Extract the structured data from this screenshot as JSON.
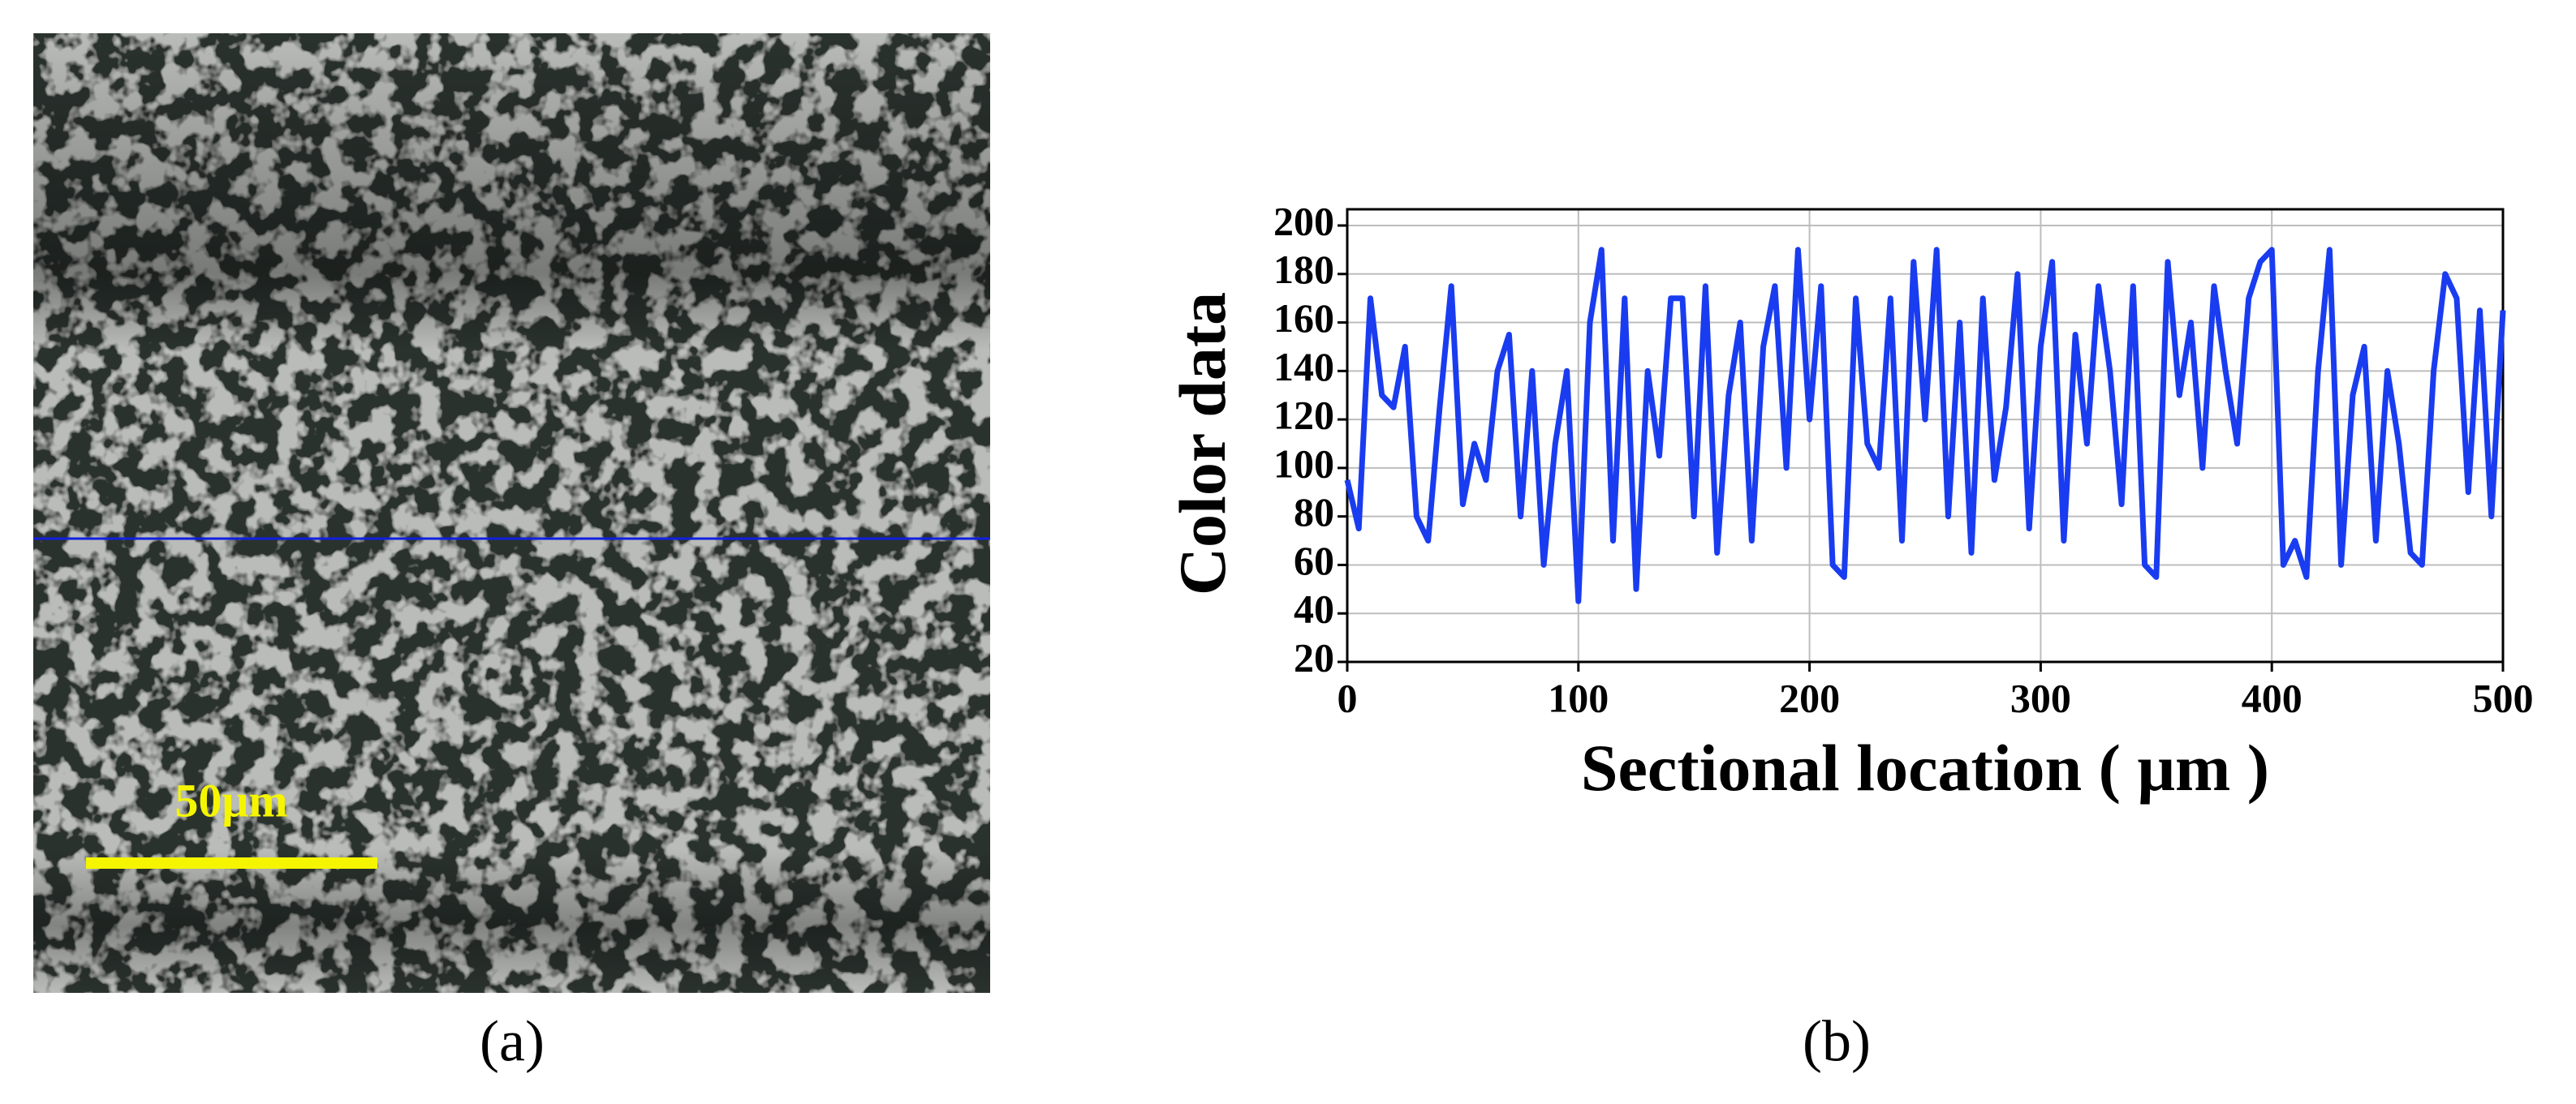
{
  "panels": {
    "scale_bar_label": "50μm",
    "label_a": "(a)",
    "label_b": "(b)"
  },
  "chart_data": {
    "type": "line",
    "xlabel": "Sectional location ( μm )",
    "ylabel": "Color data",
    "x": [
      0,
      5,
      10,
      15,
      20,
      25,
      30,
      35,
      40,
      45,
      50,
      55,
      60,
      65,
      70,
      75,
      80,
      85,
      90,
      95,
      100,
      105,
      110,
      115,
      120,
      125,
      130,
      135,
      140,
      145,
      150,
      155,
      160,
      165,
      170,
      175,
      180,
      185,
      190,
      195,
      200,
      205,
      210,
      215,
      220,
      225,
      230,
      235,
      240,
      245,
      250,
      255,
      260,
      265,
      270,
      275,
      280,
      285,
      290,
      295,
      300,
      305,
      310,
      315,
      320,
      325,
      330,
      335,
      340,
      345,
      350,
      355,
      360,
      365,
      370,
      375,
      380,
      385,
      390,
      395,
      400,
      405,
      410,
      415,
      420,
      425,
      430,
      435,
      440,
      445,
      450,
      455,
      460,
      465,
      470,
      475,
      480,
      485,
      490,
      495,
      500
    ],
    "values": [
      95,
      75,
      170,
      130,
      125,
      150,
      80,
      70,
      125,
      175,
      85,
      110,
      95,
      140,
      155,
      80,
      140,
      60,
      110,
      140,
      45,
      160,
      190,
      70,
      170,
      50,
      140,
      105,
      170,
      170,
      80,
      175,
      65,
      130,
      160,
      70,
      150,
      175,
      100,
      190,
      120,
      175,
      60,
      55,
      170,
      110,
      100,
      170,
      70,
      185,
      120,
      190,
      80,
      160,
      65,
      170,
      95,
      125,
      180,
      75,
      150,
      185,
      70,
      155,
      110,
      175,
      140,
      85,
      175,
      60,
      55,
      185,
      130,
      160,
      100,
      175,
      140,
      110,
      170,
      185,
      190,
      60,
      70,
      55,
      140,
      190,
      60,
      130,
      150,
      70,
      140,
      110,
      65,
      60,
      140,
      180,
      170,
      90,
      165,
      80,
      165
    ],
    "color": "#1a3cf0",
    "xlim": [
      0,
      500
    ],
    "xticks": [
      0,
      100,
      200,
      300,
      400,
      500
    ],
    "ylim": [
      20,
      200
    ],
    "yticks": [
      20,
      40,
      60,
      80,
      100,
      120,
      140,
      160,
      180,
      200
    ],
    "grid": true
  }
}
